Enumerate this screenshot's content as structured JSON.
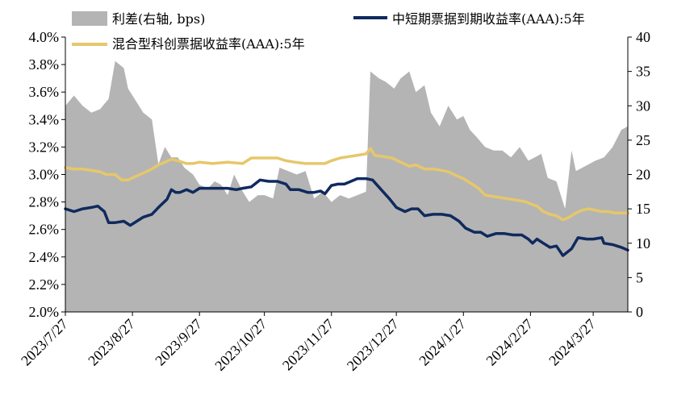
{
  "chart_data": {
    "type": "area+line",
    "legend": [
      {
        "key": "spread",
        "label": "利差(右轴, bps)",
        "color": "#b4b4b4",
        "kind": "area"
      },
      {
        "key": "ms",
        "label": "中短期票据到期收益率(AAA):5年",
        "color": "#0f2a5e",
        "kind": "line"
      },
      {
        "key": "mix",
        "label": "混合型科创票据收益率(AAA):5年",
        "color": "#e6c76a",
        "kind": "line"
      }
    ],
    "left_axis": {
      "ticks": [
        "2.0%",
        "2.2%",
        "2.4%",
        "2.6%",
        "2.8%",
        "3.0%",
        "3.2%",
        "3.4%",
        "3.6%",
        "3.8%",
        "4.0%"
      ],
      "min": 2.0,
      "max": 4.0
    },
    "right_axis": {
      "ticks": [
        "0",
        "5",
        "10",
        "15",
        "20",
        "25",
        "30",
        "35",
        "40"
      ],
      "min": 0,
      "max": 40
    },
    "x_axis": {
      "ticks": [
        "2023/7/27",
        "2023/8/27",
        "2023/9/27",
        "2023/10/27",
        "2023/11/27",
        "2023/12/27",
        "2024/1/27",
        "2024/2/27",
        "2024/3/27"
      ],
      "start": "2023/7/27",
      "end": "2024/4/12"
    },
    "series": [
      {
        "name": "利差(右轴, bps)",
        "axis": "right",
        "points": [
          [
            "2023/7/27",
            30.0
          ],
          [
            "2023/7/31",
            31.5
          ],
          [
            "2023/8/4",
            30.0
          ],
          [
            "2023/8/8",
            29.0
          ],
          [
            "2023/8/12",
            29.5
          ],
          [
            "2023/8/16",
            31.0
          ],
          [
            "2023/8/19",
            36.5
          ],
          [
            "2023/8/23",
            35.5
          ],
          [
            "2023/8/25",
            32.5
          ],
          [
            "2023/8/29",
            30.5
          ],
          [
            "2023/9/1",
            29.0
          ],
          [
            "2023/9/5",
            28.0
          ],
          [
            "2023/9/8",
            21.5
          ],
          [
            "2023/9/11",
            24.0
          ],
          [
            "2023/9/14",
            22.5
          ],
          [
            "2023/9/17",
            22.5
          ],
          [
            "2023/9/20",
            21.0
          ],
          [
            "2023/9/24",
            20.0
          ],
          [
            "2023/9/27",
            18.5
          ],
          [
            "2023/10/1",
            18.0
          ],
          [
            "2023/10/4",
            19.0
          ],
          [
            "2023/10/7",
            18.5
          ],
          [
            "2023/10/10",
            17.0
          ],
          [
            "2023/10/13",
            20.0
          ],
          [
            "2023/10/17",
            17.5
          ],
          [
            "2023/10/20",
            16.0
          ],
          [
            "2023/10/24",
            17.0
          ],
          [
            "2023/10/27",
            17.0
          ],
          [
            "2023/10/31",
            16.5
          ],
          [
            "2023/11/3",
            21.0
          ],
          [
            "2023/11/7",
            20.5
          ],
          [
            "2023/11/11",
            20.0
          ],
          [
            "2023/11/15",
            20.5
          ],
          [
            "2023/11/19",
            16.5
          ],
          [
            "2023/11/23",
            17.5
          ],
          [
            "2023/11/27",
            16.0
          ],
          [
            "2023/12/1",
            17.0
          ],
          [
            "2023/12/5",
            16.5
          ],
          [
            "2023/12/9",
            17.0
          ],
          [
            "2023/12/13",
            17.5
          ],
          [
            "2023/12/15",
            35.0
          ],
          [
            "2023/12/19",
            34.0
          ],
          [
            "2023/12/22",
            33.5
          ],
          [
            "2023/12/26",
            32.5
          ],
          [
            "2023/12/29",
            34.0
          ],
          [
            "2024/1/2",
            35.0
          ],
          [
            "2024/1/5",
            32.0
          ],
          [
            "2024/1/9",
            33.0
          ],
          [
            "2024/1/12",
            29.0
          ],
          [
            "2024/1/16",
            27.0
          ],
          [
            "2024/1/20",
            30.0
          ],
          [
            "2024/1/24",
            28.0
          ],
          [
            "2024/1/27",
            28.5
          ],
          [
            "2024/1/30",
            26.5
          ],
          [
            "2024/2/2",
            25.5
          ],
          [
            "2024/2/6",
            24.0
          ],
          [
            "2024/2/10",
            23.5
          ],
          [
            "2024/2/14",
            23.5
          ],
          [
            "2024/2/18",
            22.5
          ],
          [
            "2024/2/22",
            24.0
          ],
          [
            "2024/2/26",
            22.0
          ],
          [
            "2024/2/29",
            22.5
          ],
          [
            "2024/3/3",
            23.0
          ],
          [
            "2024/3/6",
            19.5
          ],
          [
            "2024/3/10",
            19.0
          ],
          [
            "2024/3/14",
            15.0
          ],
          [
            "2024/3/17",
            23.5
          ],
          [
            "2024/3/19",
            20.5
          ],
          [
            "2024/3/22",
            21.0
          ],
          [
            "2024/3/25",
            21.5
          ],
          [
            "2024/3/28",
            22.0
          ],
          [
            "2024/4/1",
            22.5
          ],
          [
            "2024/4/5",
            24.0
          ],
          [
            "2024/4/9",
            26.5
          ],
          [
            "2024/4/12",
            27.0
          ]
        ]
      },
      {
        "name": "中短期票据到期收益率(AAA):5年",
        "axis": "left",
        "points": [
          [
            "2023/7/27",
            2.75
          ],
          [
            "2023/7/31",
            2.73
          ],
          [
            "2023/8/4",
            2.75
          ],
          [
            "2023/8/8",
            2.76
          ],
          [
            "2023/8/11",
            2.77
          ],
          [
            "2023/8/14",
            2.73
          ],
          [
            "2023/8/16",
            2.65
          ],
          [
            "2023/8/19",
            2.65
          ],
          [
            "2023/8/23",
            2.66
          ],
          [
            "2023/8/26",
            2.63
          ],
          [
            "2023/8/29",
            2.66
          ],
          [
            "2023/9/1",
            2.69
          ],
          [
            "2023/9/5",
            2.71
          ],
          [
            "2023/9/8",
            2.76
          ],
          [
            "2023/9/12",
            2.82
          ],
          [
            "2023/9/14",
            2.89
          ],
          [
            "2023/9/16",
            2.87
          ],
          [
            "2023/9/18",
            2.87
          ],
          [
            "2023/9/21",
            2.89
          ],
          [
            "2023/9/24",
            2.87
          ],
          [
            "2023/9/27",
            2.9
          ],
          [
            "2023/10/3",
            2.9
          ],
          [
            "2023/10/10",
            2.9
          ],
          [
            "2023/10/14",
            2.89
          ],
          [
            "2023/10/17",
            2.9
          ],
          [
            "2023/10/21",
            2.91
          ],
          [
            "2023/10/25",
            2.96
          ],
          [
            "2023/10/29",
            2.95
          ],
          [
            "2023/11/2",
            2.95
          ],
          [
            "2023/11/6",
            2.93
          ],
          [
            "2023/11/8",
            2.89
          ],
          [
            "2023/11/12",
            2.89
          ],
          [
            "2023/11/16",
            2.87
          ],
          [
            "2023/11/19",
            2.87
          ],
          [
            "2023/11/22",
            2.88
          ],
          [
            "2023/11/24",
            2.86
          ],
          [
            "2023/11/27",
            2.92
          ],
          [
            "2023/11/30",
            2.93
          ],
          [
            "2023/12/3",
            2.93
          ],
          [
            "2023/12/6",
            2.95
          ],
          [
            "2023/12/9",
            2.97
          ],
          [
            "2023/12/13",
            2.97
          ],
          [
            "2023/12/16",
            2.96
          ],
          [
            "2023/12/20",
            2.89
          ],
          [
            "2023/12/24",
            2.82
          ],
          [
            "2023/12/27",
            2.76
          ],
          [
            "2023/12/31",
            2.73
          ],
          [
            "2024/1/3",
            2.75
          ],
          [
            "2024/1/6",
            2.75
          ],
          [
            "2024/1/9",
            2.7
          ],
          [
            "2024/1/13",
            2.71
          ],
          [
            "2024/1/17",
            2.71
          ],
          [
            "2024/1/21",
            2.7
          ],
          [
            "2024/1/25",
            2.66
          ],
          [
            "2024/1/28",
            2.61
          ],
          [
            "2024/2/1",
            2.58
          ],
          [
            "2024/2/4",
            2.58
          ],
          [
            "2024/2/7",
            2.55
          ],
          [
            "2024/2/11",
            2.57
          ],
          [
            "2024/2/15",
            2.57
          ],
          [
            "2024/2/19",
            2.56
          ],
          [
            "2024/2/23",
            2.56
          ],
          [
            "2024/2/26",
            2.53
          ],
          [
            "2024/2/28",
            2.5
          ],
          [
            "2024/3/1",
            2.53
          ],
          [
            "2024/3/4",
            2.5
          ],
          [
            "2024/3/7",
            2.47
          ],
          [
            "2024/3/10",
            2.48
          ],
          [
            "2024/3/13",
            2.41
          ],
          [
            "2024/3/17",
            2.46
          ],
          [
            "2024/3/20",
            2.54
          ],
          [
            "2024/3/24",
            2.53
          ],
          [
            "2024/3/27",
            2.53
          ],
          [
            "2024/3/31",
            2.54
          ],
          [
            "2024/4/1",
            2.5
          ],
          [
            "2024/4/5",
            2.49
          ],
          [
            "2024/4/9",
            2.47
          ],
          [
            "2024/4/12",
            2.45
          ]
        ]
      },
      {
        "name": "混合型科创票据收益率(AAA):5年",
        "axis": "left",
        "points": [
          [
            "2023/7/27",
            3.05
          ],
          [
            "2023/7/31",
            3.04
          ],
          [
            "2023/8/4",
            3.04
          ],
          [
            "2023/8/8",
            3.03
          ],
          [
            "2023/8/12",
            3.02
          ],
          [
            "2023/8/15",
            3.0
          ],
          [
            "2023/8/19",
            3.0
          ],
          [
            "2023/8/22",
            2.96
          ],
          [
            "2023/8/25",
            2.96
          ],
          [
            "2023/8/29",
            2.99
          ],
          [
            "2023/9/1",
            3.01
          ],
          [
            "2023/9/5",
            3.04
          ],
          [
            "2023/9/8",
            3.07
          ],
          [
            "2023/9/11",
            3.09
          ],
          [
            "2023/9/14",
            3.11
          ],
          [
            "2023/9/17",
            3.1
          ],
          [
            "2023/9/21",
            3.08
          ],
          [
            "2023/9/24",
            3.08
          ],
          [
            "2023/9/27",
            3.09
          ],
          [
            "2023/10/3",
            3.08
          ],
          [
            "2023/10/10",
            3.09
          ],
          [
            "2023/10/17",
            3.08
          ],
          [
            "2023/10/21",
            3.12
          ],
          [
            "2023/10/25",
            3.12
          ],
          [
            "2023/10/29",
            3.12
          ],
          [
            "2023/11/2",
            3.12
          ],
          [
            "2023/11/6",
            3.1
          ],
          [
            "2023/11/10",
            3.09
          ],
          [
            "2023/11/15",
            3.08
          ],
          [
            "2023/11/20",
            3.08
          ],
          [
            "2023/11/24",
            3.08
          ],
          [
            "2023/11/27",
            3.1
          ],
          [
            "2023/12/1",
            3.12
          ],
          [
            "2023/12/5",
            3.13
          ],
          [
            "2023/12/9",
            3.14
          ],
          [
            "2023/12/13",
            3.15
          ],
          [
            "2023/12/15",
            3.19
          ],
          [
            "2023/12/17",
            3.14
          ],
          [
            "2023/12/21",
            3.13
          ],
          [
            "2023/12/25",
            3.12
          ],
          [
            "2023/12/29",
            3.09
          ],
          [
            "2024/1/2",
            3.06
          ],
          [
            "2024/1/5",
            3.07
          ],
          [
            "2024/1/9",
            3.04
          ],
          [
            "2024/1/13",
            3.04
          ],
          [
            "2024/1/17",
            3.03
          ],
          [
            "2024/1/20",
            3.02
          ],
          [
            "2024/1/24",
            2.99
          ],
          [
            "2024/1/27",
            2.97
          ],
          [
            "2024/1/31",
            2.93
          ],
          [
            "2024/2/3",
            2.9
          ],
          [
            "2024/2/6",
            2.85
          ],
          [
            "2024/2/10",
            2.84
          ],
          [
            "2024/2/14",
            2.83
          ],
          [
            "2024/2/18",
            2.82
          ],
          [
            "2024/2/22",
            2.81
          ],
          [
            "2024/2/25",
            2.8
          ],
          [
            "2024/2/28",
            2.78
          ],
          [
            "2024/3/1",
            2.77
          ],
          [
            "2024/3/4",
            2.73
          ],
          [
            "2024/3/7",
            2.71
          ],
          [
            "2024/3/10",
            2.7
          ],
          [
            "2024/3/13",
            2.67
          ],
          [
            "2024/3/16",
            2.69
          ],
          [
            "2024/3/19",
            2.72
          ],
          [
            "2024/3/22",
            2.74
          ],
          [
            "2024/3/25",
            2.75
          ],
          [
            "2024/3/28",
            2.74
          ],
          [
            "2024/3/31",
            2.73
          ],
          [
            "2024/4/3",
            2.73
          ],
          [
            "2024/4/6",
            2.72
          ],
          [
            "2024/4/9",
            2.72
          ],
          [
            "2024/4/12",
            2.72
          ]
        ]
      }
    ]
  }
}
